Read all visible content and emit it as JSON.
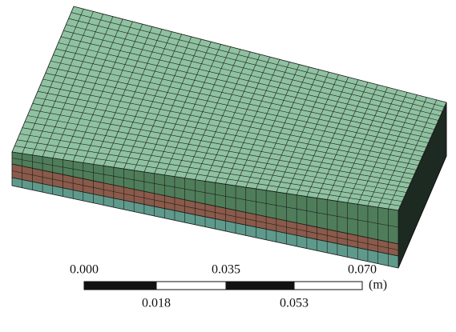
{
  "scale_bar": {
    "top_labels": [
      "0.000",
      "0.035",
      "0.070"
    ],
    "bottom_labels": [
      "0.018",
      "0.053"
    ],
    "unit": "(m)"
  }
}
